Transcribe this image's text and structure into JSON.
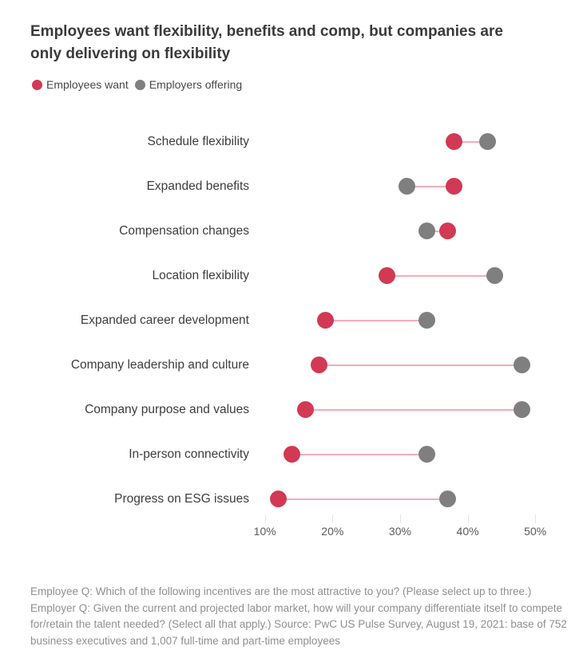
{
  "title_lines": [
    "Employees want flexibility, benefits and comp, but companies are",
    "only delivering on flexibility"
  ],
  "legend": {
    "items": [
      {
        "label": "Employees want",
        "color": "#d23954"
      },
      {
        "label": "Employers offering",
        "color": "#7f7f7f"
      }
    ]
  },
  "chart_data": {
    "type": "scatter",
    "variant": "dumbbell",
    "title": "Employees want flexibility, benefits and comp, but companies are only delivering on flexibility",
    "categories": [
      "Schedule flexibility",
      "Expanded benefits",
      "Compensation changes",
      "Location flexibility",
      "Expanded career development",
      "Company leadership and culture",
      "Company purpose and values",
      "In-person connectivity",
      "Progress on ESG issues"
    ],
    "series": [
      {
        "name": "Employees want",
        "color": "#d23954",
        "values": [
          38,
          38,
          37,
          28,
          19,
          18,
          16,
          14,
          12
        ]
      },
      {
        "name": "Employers offering",
        "color": "#7f7f7f",
        "values": [
          43,
          31,
          34,
          44,
          34,
          48,
          48,
          34,
          37
        ]
      }
    ],
    "unit": "%",
    "connector_color": "#f2adbb",
    "x_axis": {
      "min": 10,
      "max": 50,
      "tick_values": [
        10,
        20,
        30,
        40,
        50
      ],
      "tick_labels": [
        "10%",
        "20%",
        "30%",
        "40%",
        "50%"
      ]
    },
    "grid": false,
    "legend_position": "top-left"
  },
  "footnote": "Employee Q: Which of the following incentives are the most attractive to you? (Please select up to three.) Employer Q: Given the current and projected labor market, how will your company differentiate itself to compete for/retain the talent needed? (Select all that apply.) Source: PwC US Pulse Survey, August 19, 2021: base of 752 business executives and 1,007 full-time and part-time employees"
}
